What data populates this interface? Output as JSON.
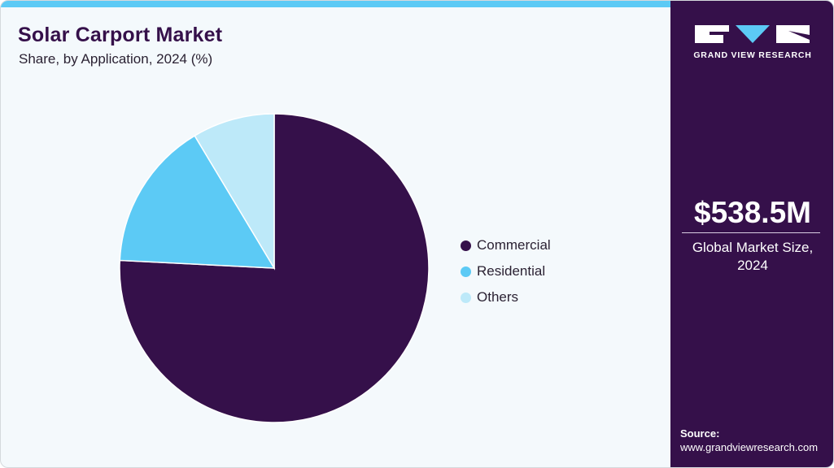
{
  "header": {
    "title": "Solar Carport Market",
    "subtitle": "Share, by Application, 2024 (%)"
  },
  "legend": {
    "items": [
      {
        "label": "Commercial",
        "color": "#35104a"
      },
      {
        "label": "Residential",
        "color": "#5ccaf5"
      },
      {
        "label": "Others",
        "color": "#bde9f9"
      }
    ]
  },
  "sidebar": {
    "brand": "GRAND VIEW RESEARCH",
    "market_size": "$538.5M",
    "market_label_line1": "Global Market Size,",
    "market_label_line2": "2024",
    "source_label": "Source:",
    "source_url": "www.grandviewresearch.com"
  },
  "colors": {
    "accent_dark": "#35104a",
    "accent_light": "#5ccaf5",
    "accent_pale": "#bde9f9",
    "background": "#f4f9fc"
  },
  "chart_data": {
    "type": "pie",
    "title": "Solar Carport Market",
    "subtitle": "Share, by Application, 2024 (%)",
    "categories": [
      "Commercial",
      "Residential",
      "Others"
    ],
    "values": [
      75.8,
      15.6,
      8.6
    ],
    "colors": [
      "#35104a",
      "#5ccaf5",
      "#bde9f9"
    ],
    "start_angle": "12 o'clock, clockwise",
    "legend_position": "right"
  }
}
